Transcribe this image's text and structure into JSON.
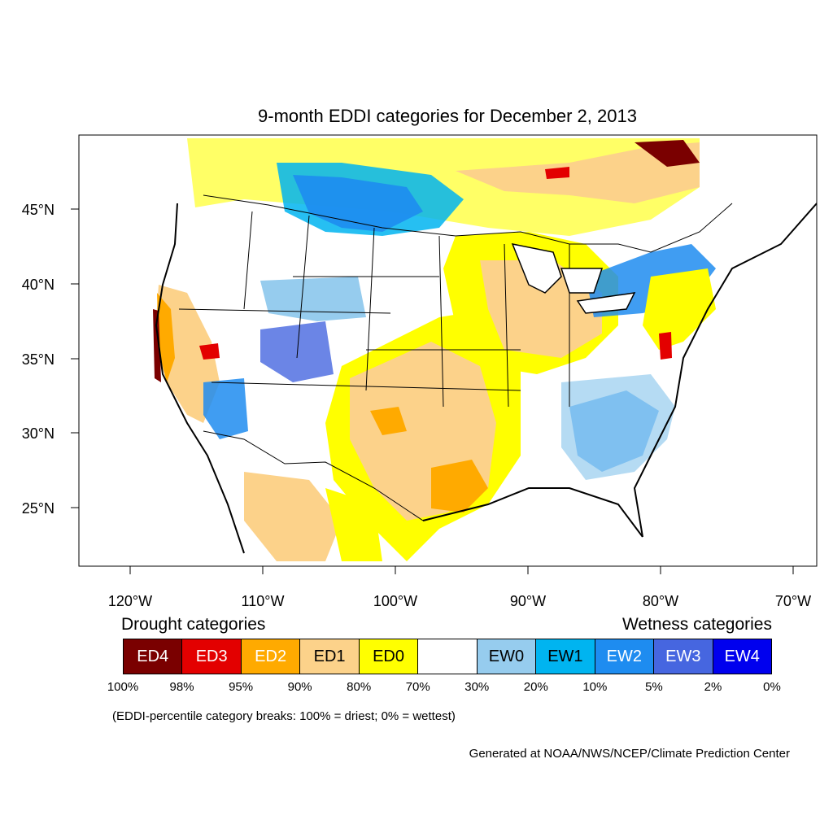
{
  "title": "9-month EDDI categories for December 2, 2013",
  "lat_labels": [
    "45°N",
    "40°N",
    "35°N",
    "30°N",
    "25°N"
  ],
  "lon_labels": [
    "120°W",
    "110°W",
    "100°W",
    "90°W",
    "80°W",
    "70°W"
  ],
  "legend": {
    "drought_heading": "Drought categories",
    "wetness_heading": "Wetness categories",
    "boxes": [
      {
        "label": "ED4",
        "color": "#7a0000",
        "text_color": "#ffffff"
      },
      {
        "label": "ED3",
        "color": "#e30000",
        "text_color": "#ffffff"
      },
      {
        "label": "ED2",
        "color": "#ffaa00",
        "text_color": "#ffffff"
      },
      {
        "label": "ED1",
        "color": "#fcd28a",
        "text_color": "#000000"
      },
      {
        "label": "ED0",
        "color": "#ffff00",
        "text_color": "#000000"
      },
      {
        "label": "",
        "color": "#ffffff",
        "text_color": "#000000"
      },
      {
        "label": "EW0",
        "color": "#96ccee",
        "text_color": "#000000"
      },
      {
        "label": "EW1",
        "color": "#00b4f0",
        "text_color": "#000000"
      },
      {
        "label": "EW2",
        "color": "#1e8cf0",
        "text_color": "#ffffff"
      },
      {
        "label": "EW3",
        "color": "#4666e0",
        "text_color": "#ffffff"
      },
      {
        "label": "EW4",
        "color": "#0000ee",
        "text_color": "#ffffff"
      }
    ],
    "breaks": [
      "100%",
      "98%",
      "95%",
      "90%",
      "80%",
      "70%",
      "30%",
      "20%",
      "10%",
      "5%",
      "2%",
      "0%"
    ]
  },
  "note": "(EDDI-percentile category breaks: 100% = driest; 0% = wettest)",
  "credit": "Generated at NOAA/NWS/NCEP/Climate Prediction Center"
}
